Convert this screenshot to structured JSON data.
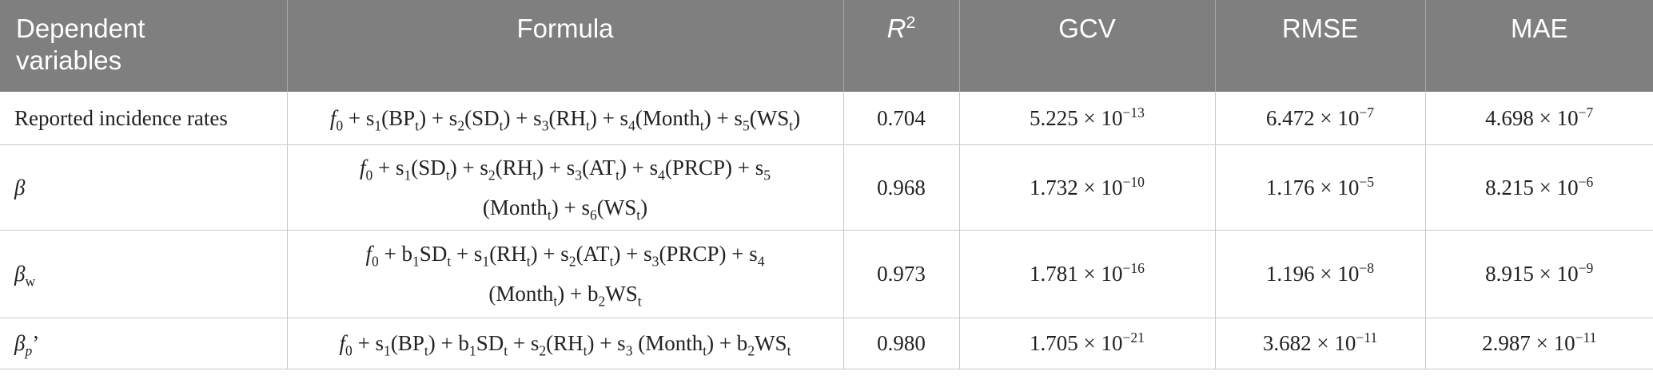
{
  "table": {
    "header": [
      [
        [
          "Dependent"
        ],
        [
          "variables"
        ]
      ],
      [
        [
          "Formula"
        ]
      ],
      [
        [
          {
            "text": "R",
            "style": "italic"
          },
          {
            "text": "2",
            "style": "sup"
          }
        ]
      ],
      [
        [
          "GCV"
        ]
      ],
      [
        [
          "RMSE"
        ]
      ],
      [
        [
          "MAE"
        ]
      ]
    ],
    "rows": [
      [
        [
          [
            "Reported incidence rates"
          ]
        ],
        [
          [
            {
              "text": "f",
              "style": "italic"
            },
            {
              "text": "0",
              "style": "sub"
            },
            " + s",
            {
              "text": "1",
              "style": "sub"
            },
            "(BP",
            {
              "text": "t",
              "style": "sub"
            },
            ") + s",
            {
              "text": "2",
              "style": "sub"
            },
            "(SD",
            {
              "text": "t",
              "style": "sub"
            },
            ") + s",
            {
              "text": "3",
              "style": "sub"
            },
            "(RH",
            {
              "text": "t",
              "style": "sub"
            },
            ") + s",
            {
              "text": "4",
              "style": "sub"
            },
            "(Month",
            {
              "text": "t",
              "style": "sub"
            },
            ") + s",
            {
              "text": "5",
              "style": "sub"
            },
            "(WS",
            {
              "text": "t",
              "style": "sub"
            },
            ")"
          ]
        ],
        [
          [
            "0.704"
          ]
        ],
        [
          [
            "5.225 × 10",
            {
              "text": "−13",
              "style": "sup"
            }
          ]
        ],
        [
          [
            "6.472 × 10",
            {
              "text": "−7",
              "style": "sup"
            }
          ]
        ],
        [
          [
            "4.698 × 10",
            {
              "text": "−7",
              "style": "sup"
            }
          ]
        ]
      ],
      [
        [
          [
            {
              "text": "β",
              "style": "italic"
            }
          ]
        ],
        [
          [
            {
              "text": "f",
              "style": "italic"
            },
            {
              "text": "0",
              "style": "sub"
            },
            " + s",
            {
              "text": "1",
              "style": "sub"
            },
            "(SD",
            {
              "text": "t",
              "style": "sub"
            },
            ") + s",
            {
              "text": "2",
              "style": "sub"
            },
            "(RH",
            {
              "text": "t",
              "style": "sub"
            },
            ") + s",
            {
              "text": "3",
              "style": "sub"
            },
            "(AT",
            {
              "text": "t",
              "style": "sub"
            },
            ") + s",
            {
              "text": "4",
              "style": "sub"
            },
            "(PRCP) + s",
            {
              "text": "5",
              "style": "sub"
            }
          ],
          [
            "(Month",
            {
              "text": "t",
              "style": "sub"
            },
            ") + s",
            {
              "text": "6",
              "style": "sub"
            },
            "(WS",
            {
              "text": "t",
              "style": "sub"
            },
            ")"
          ]
        ],
        [
          [
            "0.968"
          ]
        ],
        [
          [
            "1.732 × 10",
            {
              "text": "−10",
              "style": "sup"
            }
          ]
        ],
        [
          [
            "1.176 × 10",
            {
              "text": "−5",
              "style": "sup"
            }
          ]
        ],
        [
          [
            "8.215 × 10",
            {
              "text": "−6",
              "style": "sup"
            }
          ]
        ]
      ],
      [
        [
          [
            {
              "text": "β",
              "style": "italic"
            },
            {
              "text": "w",
              "style": "sub"
            }
          ]
        ],
        [
          [
            {
              "text": "f",
              "style": "italic"
            },
            {
              "text": "0",
              "style": "sub"
            },
            " + b",
            {
              "text": "1",
              "style": "sub"
            },
            "SD",
            {
              "text": "t",
              "style": "sub"
            },
            " + s",
            {
              "text": "1",
              "style": "sub"
            },
            "(RH",
            {
              "text": "t",
              "style": "sub"
            },
            ") + s",
            {
              "text": "2",
              "style": "sub"
            },
            "(AT",
            {
              "text": "t",
              "style": "sub"
            },
            ") + s",
            {
              "text": "3",
              "style": "sub"
            },
            "(PRCP) + s",
            {
              "text": "4",
              "style": "sub"
            }
          ],
          [
            "(Month",
            {
              "text": "t",
              "style": "sub"
            },
            ") + b",
            {
              "text": "2",
              "style": "sub"
            },
            "WS",
            {
              "text": "t",
              "style": "sub"
            }
          ]
        ],
        [
          [
            "0.973"
          ]
        ],
        [
          [
            "1.781 × 10",
            {
              "text": "−16",
              "style": "sup"
            }
          ]
        ],
        [
          [
            "1.196 × 10",
            {
              "text": "−8",
              "style": "sup"
            }
          ]
        ],
        [
          [
            "8.915 × 10",
            {
              "text": "−9",
              "style": "sup"
            }
          ]
        ]
      ],
      [
        [
          [
            {
              "text": "β",
              "style": "italic"
            },
            {
              "text": "p",
              "style": "italic-sub"
            },
            "’"
          ]
        ],
        [
          [
            {
              "text": "f",
              "style": "italic"
            },
            {
              "text": "0",
              "style": "sub"
            },
            " + s",
            {
              "text": "1",
              "style": "sub"
            },
            "(BP",
            {
              "text": "t",
              "style": "sub"
            },
            ") + b",
            {
              "text": "1",
              "style": "sub"
            },
            "SD",
            {
              "text": "t",
              "style": "sub"
            },
            " + s",
            {
              "text": "2",
              "style": "sub"
            },
            "(RH",
            {
              "text": "t",
              "style": "sub"
            },
            ") + s",
            {
              "text": "3",
              "style": "sub"
            },
            " (Month",
            {
              "text": "t",
              "style": "sub"
            },
            ") + b",
            {
              "text": "2",
              "style": "sub"
            },
            "WS",
            {
              "text": "t",
              "style": "sub"
            }
          ]
        ],
        [
          [
            "0.980"
          ]
        ],
        [
          [
            "1.705 × 10",
            {
              "text": "−21",
              "style": "sup"
            }
          ]
        ],
        [
          [
            "3.682 × 10",
            {
              "text": "−11",
              "style": "sup"
            }
          ]
        ],
        [
          [
            "2.987 × 10",
            {
              "text": "−11",
              "style": "sup"
            }
          ]
        ]
      ]
    ]
  }
}
